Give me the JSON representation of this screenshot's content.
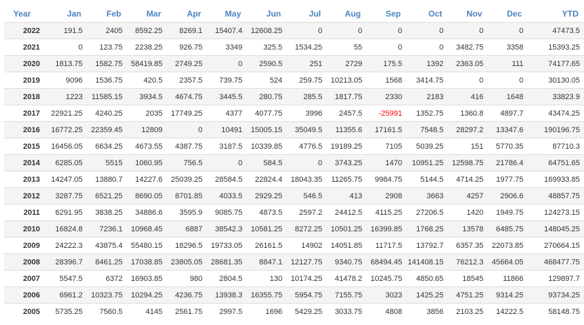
{
  "colors": {
    "header_text": "#4a82c2",
    "negative": "#ff0000",
    "stripe": "#f4f4f4",
    "border": "#dddddd"
  },
  "headers": [
    "Year",
    "Jan",
    "Feb",
    "Mar",
    "Apr",
    "May",
    "Jun",
    "Jul",
    "Aug",
    "Sep",
    "Oct",
    "Nov",
    "Dec",
    "YTD"
  ],
  "rows": [
    {
      "year": "2022",
      "values": [
        "191.5",
        "2405",
        "8592.25",
        "8269.1",
        "15407.4",
        "12608.25",
        "0",
        "0",
        "0",
        "0",
        "0",
        "0",
        "47473.5"
      ]
    },
    {
      "year": "2021",
      "values": [
        "0",
        "123.75",
        "2238.25",
        "926.75",
        "3349",
        "325.5",
        "1534.25",
        "55",
        "0",
        "0",
        "3482.75",
        "3358",
        "15393.25"
      ]
    },
    {
      "year": "2020",
      "values": [
        "1813.75",
        "1582.75",
        "58419.85",
        "2749.25",
        "0",
        "2590.5",
        "251",
        "2729",
        "175.5",
        "1392",
        "2363.05",
        "111",
        "74177.65"
      ]
    },
    {
      "year": "2019",
      "values": [
        "9096",
        "1536.75",
        "420.5",
        "2357.5",
        "739.75",
        "524",
        "259.75",
        "10213.05",
        "1568",
        "3414.75",
        "0",
        "0",
        "30130.05"
      ]
    },
    {
      "year": "2018",
      "values": [
        "1223",
        "11585.15",
        "3934.5",
        "4674.75",
        "3445.5",
        "280.75",
        "285.5",
        "1817.75",
        "2330",
        "2183",
        "416",
        "1648",
        "33823.9"
      ]
    },
    {
      "year": "2017",
      "values": [
        "22921.25",
        "4240.25",
        "2035",
        "17749.25",
        "4377",
        "4077.75",
        "3996",
        "2457.5",
        "-25991",
        "1352.75",
        "1360.8",
        "4897.7",
        "43474.25"
      ]
    },
    {
      "year": "2016",
      "values": [
        "16772.25",
        "22359.45",
        "12809",
        "0",
        "10491",
        "15005.15",
        "35049.5",
        "11355.6",
        "17161.5",
        "7548.5",
        "28297.2",
        "13347.6",
        "190196.75"
      ]
    },
    {
      "year": "2015",
      "values": [
        "16456.05",
        "6634.25",
        "4673.55",
        "4387.75",
        "3187.5",
        "10339.85",
        "4776.5",
        "19189.25",
        "7105",
        "5039.25",
        "151",
        "5770.35",
        "87710.3"
      ]
    },
    {
      "year": "2014",
      "values": [
        "6285.05",
        "5515",
        "1060.95",
        "756.5",
        "0",
        "584.5",
        "0",
        "3743.25",
        "1470",
        "10951.25",
        "12598.75",
        "21786.4",
        "64751.65"
      ]
    },
    {
      "year": "2013",
      "values": [
        "14247.05",
        "13880.7",
        "14227.6",
        "25039.25",
        "28584.5",
        "22824.4",
        "18043.35",
        "11265.75",
        "9984.75",
        "5144.5",
        "4714.25",
        "1977.75",
        "169933.85"
      ]
    },
    {
      "year": "2012",
      "values": [
        "3287.75",
        "6521.25",
        "8690.05",
        "8701.85",
        "4033.5",
        "2929.25",
        "546.5",
        "413",
        "2908",
        "3663",
        "4257",
        "2906.6",
        "48857.75"
      ]
    },
    {
      "year": "2011",
      "values": [
        "6291.95",
        "3838.25",
        "34886.6",
        "3595.9",
        "9085.75",
        "4873.5",
        "2597.2",
        "24412.5",
        "4115.25",
        "27206.5",
        "1420",
        "1949.75",
        "124273.15"
      ]
    },
    {
      "year": "2010",
      "values": [
        "16824.8",
        "7236.1",
        "10968.45",
        "6887",
        "38542.3",
        "10581.25",
        "8272.25",
        "10501.25",
        "16399.85",
        "1768.25",
        "13578",
        "6485.75",
        "148045.25"
      ]
    },
    {
      "year": "2009",
      "values": [
        "24222.3",
        "43875.4",
        "55480.15",
        "18296.5",
        "19733.05",
        "26161.5",
        "14902",
        "14051.85",
        "11717.5",
        "13792.7",
        "6357.35",
        "22073.85",
        "270664.15"
      ]
    },
    {
      "year": "2008",
      "values": [
        "28396.7",
        "8461.25",
        "17038.85",
        "23805.05",
        "28681.35",
        "8847.1",
        "12127.75",
        "9340.75",
        "68494.45",
        "141408.15",
        "76212.3",
        "45664.05",
        "468477.75"
      ]
    },
    {
      "year": "2007",
      "values": [
        "5547.5",
        "6372",
        "16903.85",
        "980",
        "2804.5",
        "130",
        "10174.25",
        "41478.2",
        "10245.75",
        "4850.65",
        "18545",
        "11866",
        "129897.7"
      ]
    },
    {
      "year": "2006",
      "values": [
        "6961.2",
        "10323.75",
        "10294.25",
        "4236.75",
        "13938.3",
        "16355.75",
        "5954.75",
        "7155.75",
        "3023",
        "1425.25",
        "4751.25",
        "9314.25",
        "93734.25"
      ]
    },
    {
      "year": "2005",
      "values": [
        "5735.25",
        "7560.5",
        "4145",
        "2561.75",
        "2997.5",
        "1696",
        "5429.25",
        "3033.75",
        "4808",
        "3856",
        "2103.25",
        "14222.5",
        "58148.75"
      ]
    }
  ]
}
